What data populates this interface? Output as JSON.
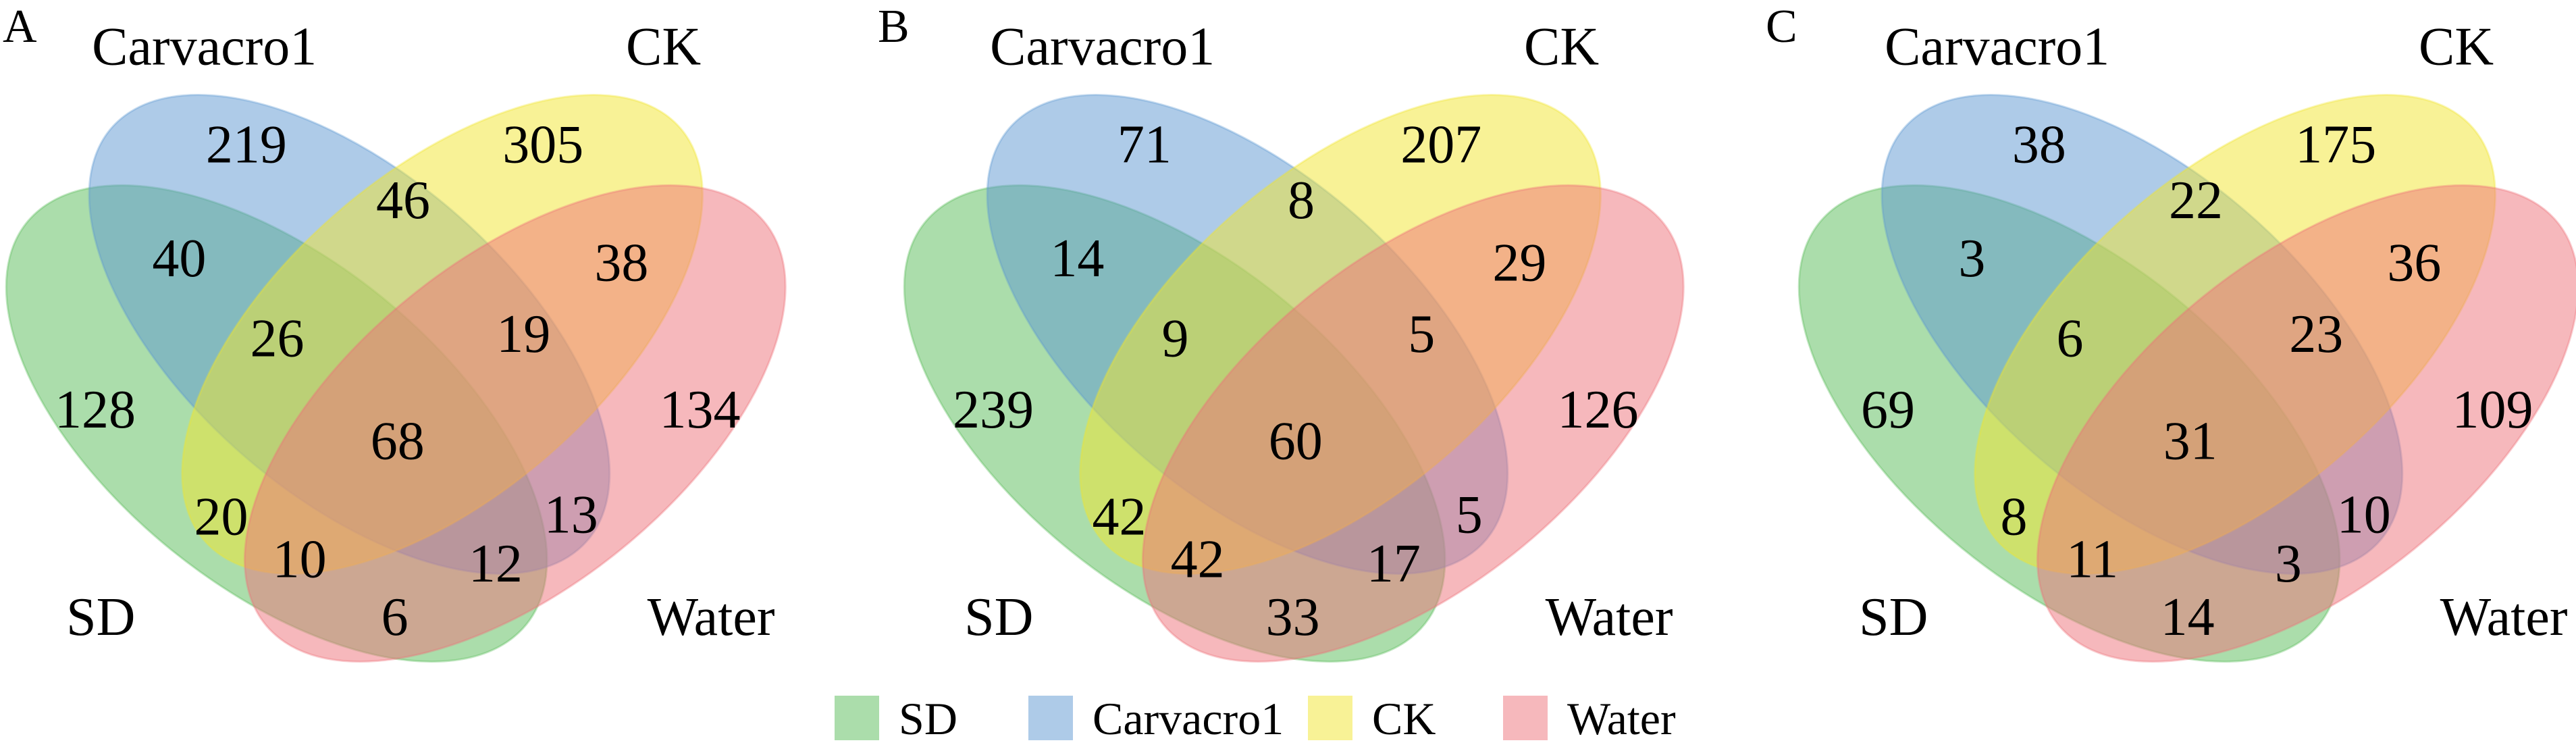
{
  "chart_data": {
    "type": "venn",
    "sets": [
      "SD",
      "Carvacro1",
      "CK",
      "Water"
    ],
    "colors": {
      "SD": "#57bb57",
      "Carvacro1": "#5d97d1",
      "CK": "#f1e52d",
      "Water": "#ed7179"
    },
    "legend": {
      "placement": "bottom-center",
      "entries": [
        "SD",
        "Carvacro1",
        "CK",
        "Water"
      ]
    },
    "panels": [
      {
        "letter": "A",
        "regions": {
          "SD_only": 128,
          "Carvacro1_only": 219,
          "CK_only": 305,
          "Water_only": 134,
          "SD_Carvacro1": 40,
          "Carvacro1_CK": 46,
          "CK_Water": 38,
          "SD_Carvacro1_CK": 26,
          "Carvacro1_CK_Water": 19,
          "all": 68,
          "SD_CK": 20,
          "Carvacro1_Water": 13,
          "SD_CK_Water": 10,
          "SD_Carvacro1_Water": 12,
          "SD_Water": 6
        }
      },
      {
        "letter": "B",
        "regions": {
          "SD_only": 239,
          "Carvacro1_only": 71,
          "CK_only": 207,
          "Water_only": 126,
          "SD_Carvacro1": 14,
          "Carvacro1_CK": 8,
          "CK_Water": 29,
          "SD_Carvacro1_CK": 9,
          "Carvacro1_CK_Water": 5,
          "all": 60,
          "SD_CK": 42,
          "Carvacro1_Water": 5,
          "SD_CK_Water": 42,
          "SD_Carvacro1_Water": 17,
          "SD_Water": 33
        }
      },
      {
        "letter": "C",
        "regions": {
          "SD_only": 69,
          "Carvacro1_only": 38,
          "CK_only": 175,
          "Water_only": 109,
          "SD_Carvacro1": 3,
          "Carvacro1_CK": 22,
          "CK_Water": 36,
          "SD_Carvacro1_CK": 6,
          "Carvacro1_CK_Water": 23,
          "all": 31,
          "SD_CK": 8,
          "Carvacro1_Water": 10,
          "SD_CK_Water": 11,
          "SD_Carvacro1_Water": 3,
          "SD_Water": 14
        }
      }
    ]
  }
}
